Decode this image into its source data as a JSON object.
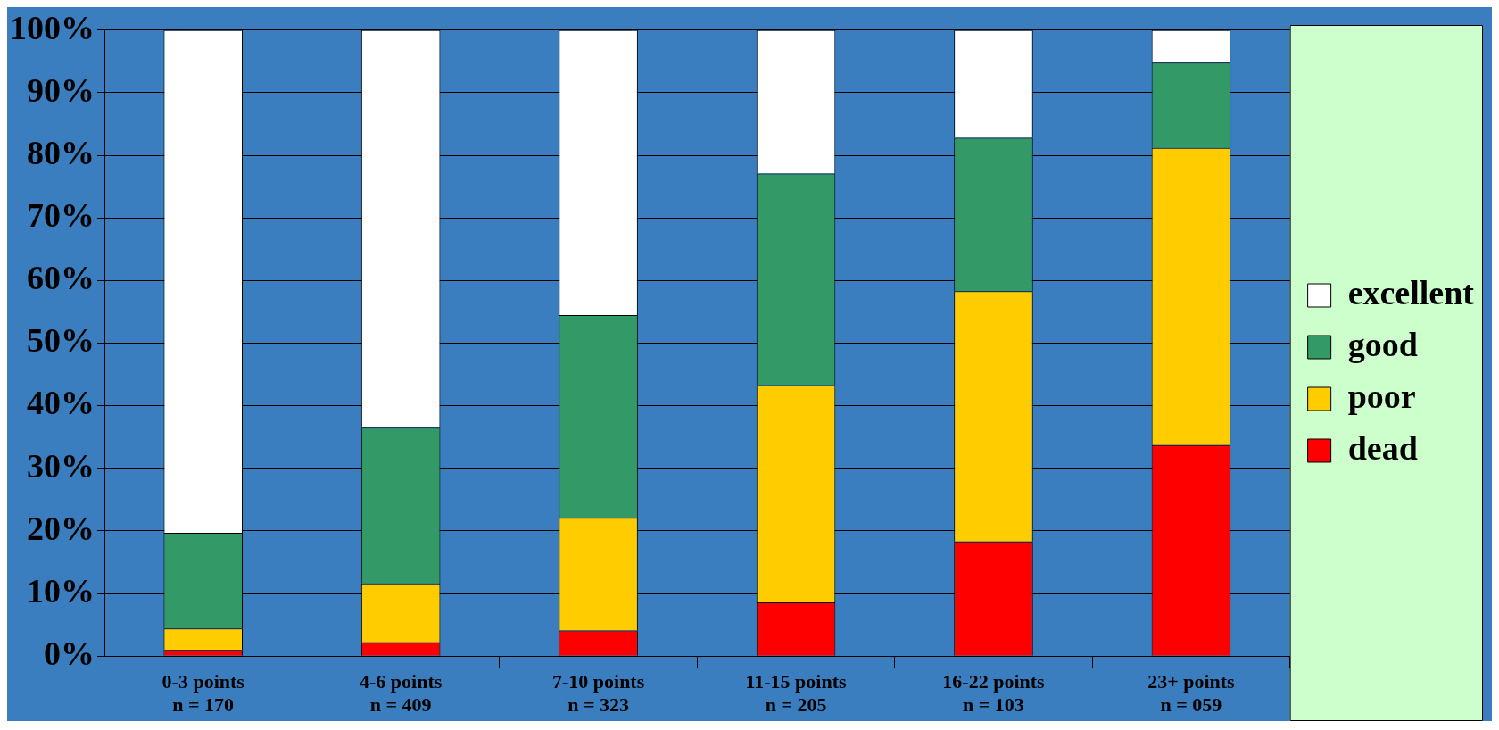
{
  "chart_data": {
    "type": "bar",
    "stacked": true,
    "categories": [
      "0-3 points\nn = 170",
      "4-6 points\nn = 409",
      "7-10 points\nn = 323",
      "11-15 points\nn = 205",
      "16-22 points\nn = 103",
      "23+ points\nn = 059"
    ],
    "series": [
      {
        "name": "dead",
        "color": "#ff0000",
        "values": [
          1,
          2.2,
          4.1,
          8.6,
          18.3,
          33.7
        ]
      },
      {
        "name": "poor",
        "color": "#ffcc00",
        "values": [
          3.4,
          9.4,
          18,
          34.7,
          40,
          47.5
        ]
      },
      {
        "name": "good",
        "color": "#339966",
        "values": [
          15.3,
          24.9,
          32.4,
          33.8,
          24.5,
          13.6
        ]
      },
      {
        "name": "excellent",
        "color": "#ffffff",
        "values": [
          80.3,
          63.5,
          45.5,
          22.9,
          17.2,
          5.2
        ]
      }
    ],
    "ylim": [
      0,
      100
    ],
    "yticks": [
      {
        "value": 0,
        "label": "0%"
      },
      {
        "value": 10,
        "label": "10%"
      },
      {
        "value": 20,
        "label": "20%"
      },
      {
        "value": 30,
        "label": "30%"
      },
      {
        "value": 40,
        "label": "40%"
      },
      {
        "value": 50,
        "label": "50%"
      },
      {
        "value": 60,
        "label": "60%"
      },
      {
        "value": 70,
        "label": "70%"
      },
      {
        "value": 80,
        "label": "80%"
      },
      {
        "value": 90,
        "label": "90%"
      },
      {
        "value": 100,
        "label": "100%"
      }
    ],
    "grid": "y",
    "legend": "right"
  }
}
